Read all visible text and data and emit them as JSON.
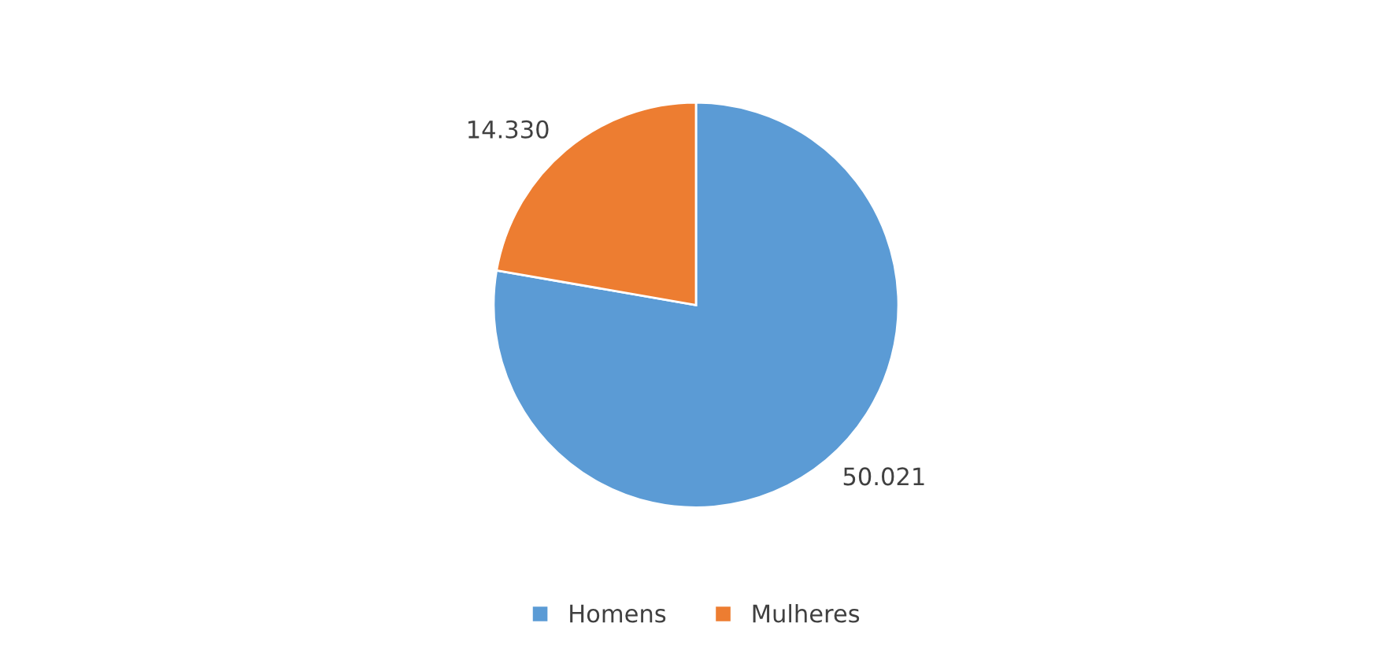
{
  "chart_data": {
    "type": "pie",
    "categories": [
      "Homens",
      "Mulheres"
    ],
    "values": [
      50021,
      14330
    ],
    "value_labels": [
      "50.021",
      "14.330"
    ],
    "colors": [
      "#5b9bd5",
      "#ed7d31"
    ],
    "legend": "bottom"
  }
}
